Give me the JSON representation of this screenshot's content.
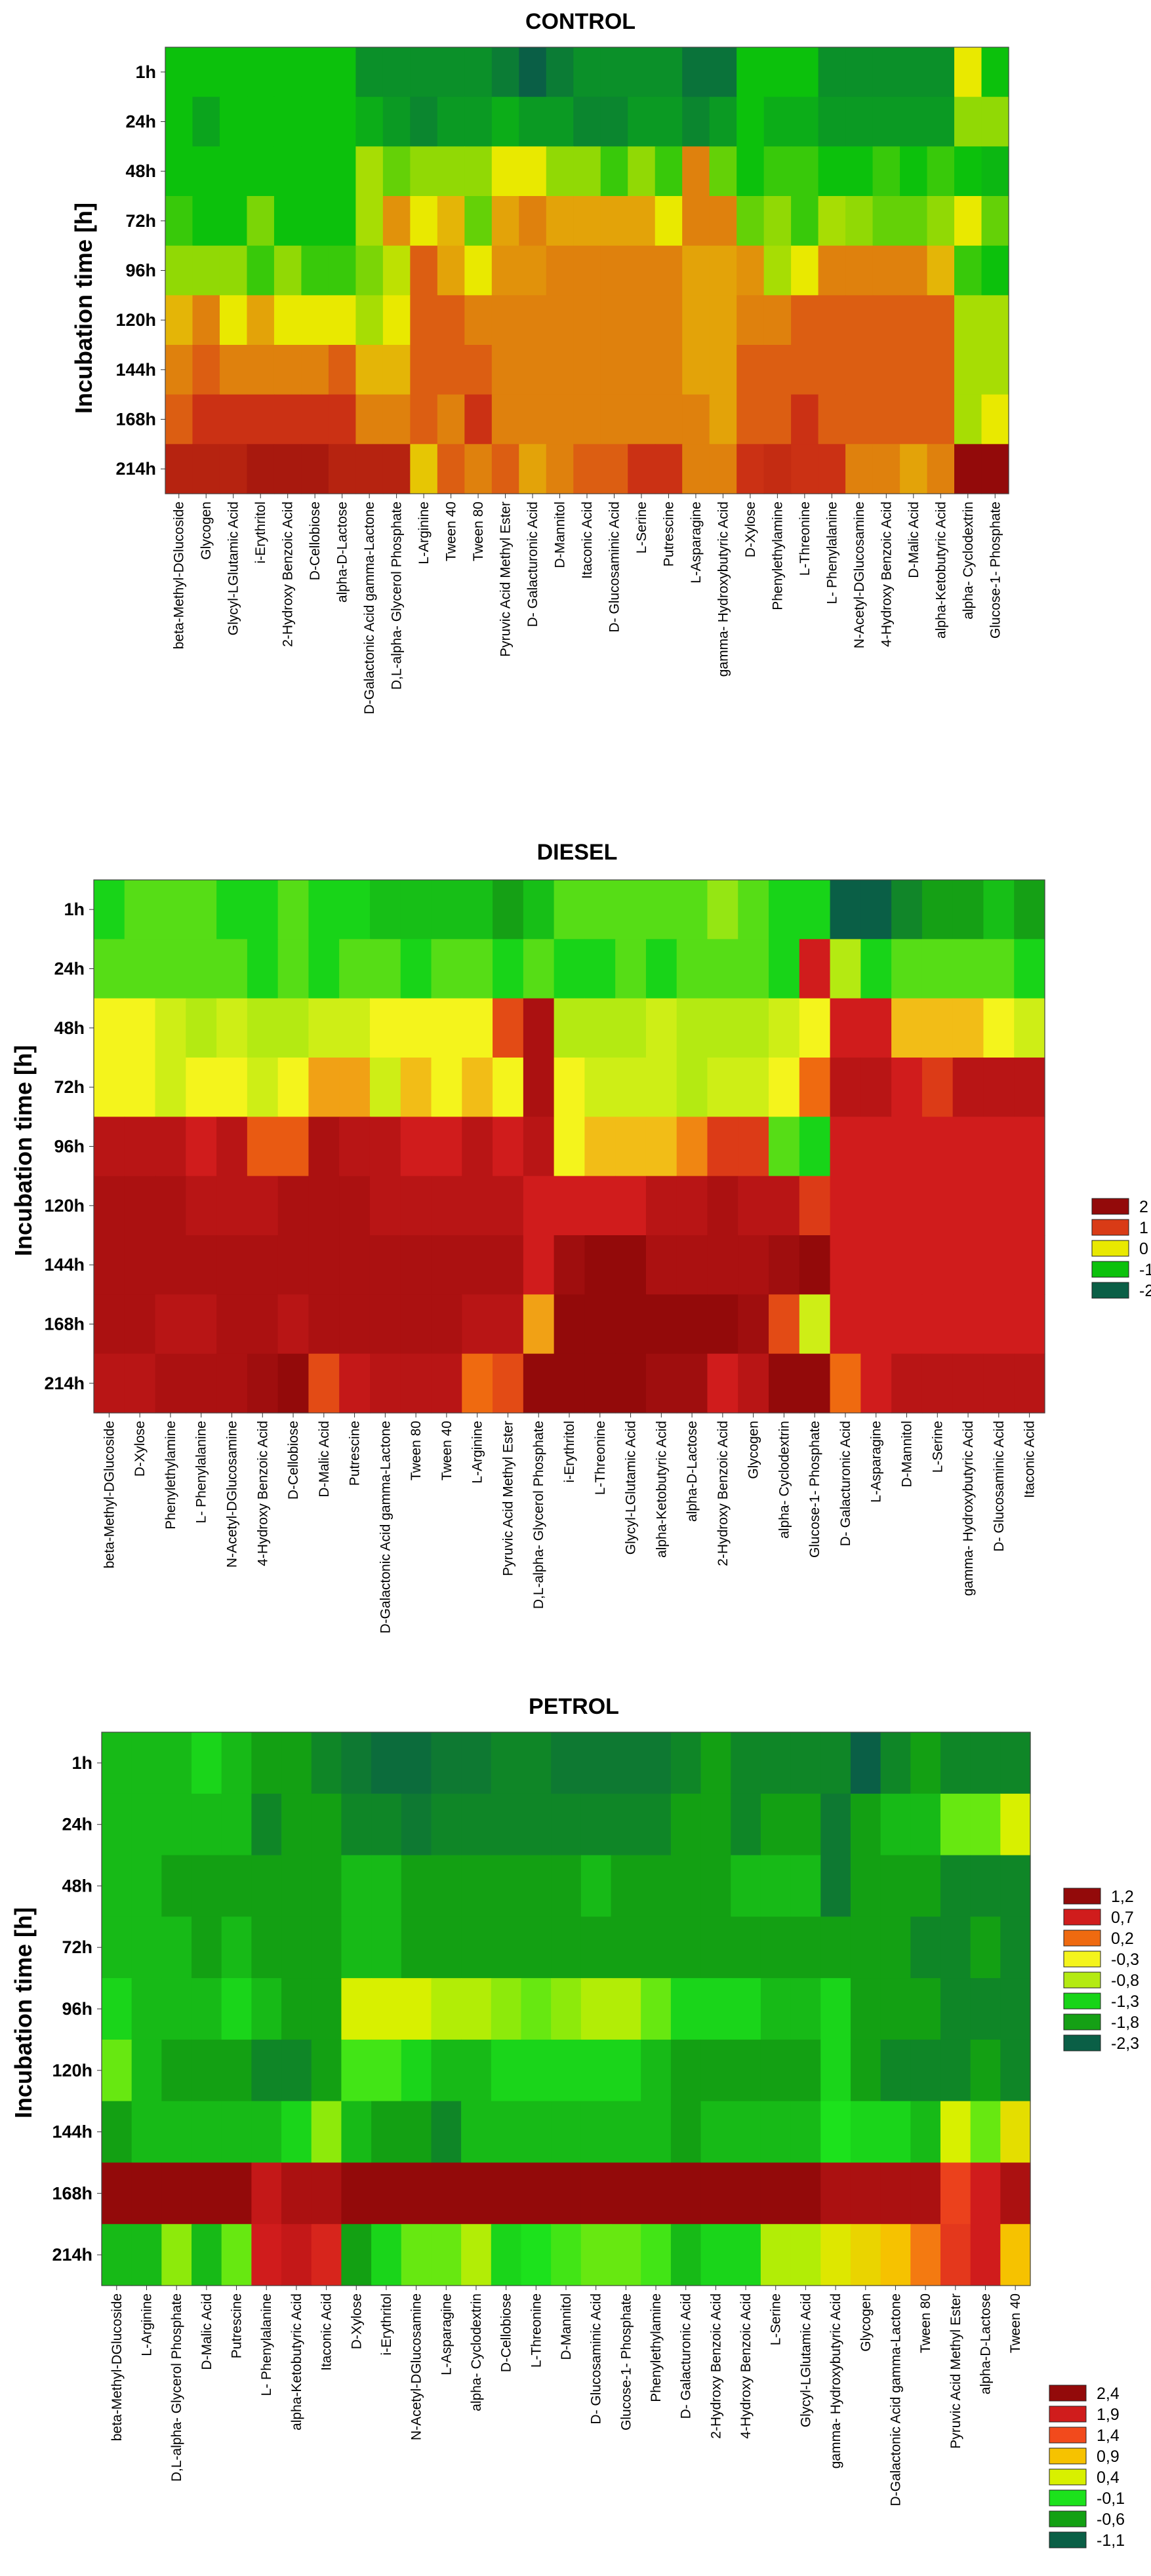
{
  "chart_data": [
    {
      "type": "heatmap",
      "title": "CONTROL",
      "ylabel": "Incubation time [h]",
      "rows": [
        "1h",
        "24h",
        "48h",
        "72h",
        "96h",
        "120h",
        "144h",
        "168h",
        "214h"
      ],
      "columns": [
        "beta-Methyl-DGlucoside",
        "Glycogen",
        "Glycyl-LGlutamic Acid",
        "i-Erythritol",
        "2-Hydroxy Benzoic Acid",
        "D-Cellobiose",
        "alpha-D-Lactose",
        "D-Galactonic Acid gamma-Lactone",
        "D,L-alpha- Glycerol Phosphate",
        "L-Arginine",
        "Tween 40",
        "Tween 80",
        "Pyruvic Acid Methyl Ester",
        "D- Galacturonic Acid",
        "D-Mannitol",
        "Itaconic Acid",
        "D- Glucosaminic Acid",
        "L-Serine",
        "Putrescine",
        "L-Asparagine",
        "gamma- Hydroxybutyric Acid",
        "D-Xylose",
        "Phenylethylamine",
        "L-Threonine",
        "L- Phenylalanine",
        "N-Acetyl-DGlucosamine",
        "4-Hydroxy Benzoic Acid",
        "D-Malic Acid",
        "alpha-Ketobutyric Acid",
        "alpha- Cyclodextrin",
        "Glucose-1- Phosphate"
      ],
      "values": [
        [
          -1,
          -1,
          -1,
          -1,
          -1,
          -1,
          -1,
          -1.5,
          -1.5,
          -1.5,
          -1.5,
          -1.5,
          -1.7,
          -2,
          -1.7,
          -1.5,
          -1.5,
          -1.5,
          -1.5,
          -1.8,
          -1.8,
          -1,
          -1,
          -1,
          -1.5,
          -1.5,
          -1.5,
          -1.5,
          -1.5,
          0,
          -1
        ],
        [
          -1,
          -1.3,
          -1,
          -1,
          -1,
          -1,
          -1,
          -1.2,
          -1.4,
          -1.6,
          -1.4,
          -1.4,
          -1.2,
          -1.4,
          -1.4,
          -1.6,
          -1.6,
          -1.4,
          -1.4,
          -1.6,
          -1.4,
          -1,
          -1.2,
          -1.2,
          -1.4,
          -1.4,
          -1.4,
          -1.4,
          -1.4,
          -0.4,
          -0.4
        ],
        [
          -1,
          -1,
          -1,
          -1,
          -1,
          -1,
          -1,
          -0.3,
          -0.6,
          -0.4,
          -0.4,
          -0.4,
          0,
          0,
          -0.4,
          -0.4,
          -0.8,
          -0.4,
          -0.8,
          0.6,
          -0.6,
          -1,
          -0.8,
          -0.8,
          -1,
          -1,
          -0.8,
          -1,
          -0.8,
          -1,
          -1.1
        ],
        [
          -0.8,
          -1,
          -1,
          -0.5,
          -1,
          -1,
          -1,
          -0.3,
          0.5,
          0,
          0.3,
          -0.6,
          0.4,
          0.6,
          0.4,
          0.4,
          0.4,
          0.4,
          0,
          0.6,
          0.6,
          -0.6,
          -0.4,
          -0.8,
          -0.3,
          -0.4,
          -0.6,
          -0.6,
          -0.4,
          0,
          -0.6
        ],
        [
          -0.4,
          -0.4,
          -0.4,
          -0.8,
          -0.4,
          -0.8,
          -0.8,
          -0.5,
          -0.2,
          0.8,
          0.4,
          0,
          0.5,
          0.5,
          0.6,
          0.6,
          0.6,
          0.6,
          0.6,
          0.4,
          0.4,
          0.5,
          -0.3,
          0,
          0.6,
          0.6,
          0.6,
          0.6,
          0.3,
          -0.8,
          -1
        ],
        [
          0.3,
          0.6,
          0,
          0.4,
          0,
          0,
          0,
          -0.3,
          0,
          0.8,
          0.8,
          0.6,
          0.6,
          0.6,
          0.6,
          0.6,
          0.6,
          0.6,
          0.6,
          0.4,
          0.4,
          0.6,
          0.6,
          0.8,
          0.8,
          0.8,
          0.8,
          0.8,
          0.8,
          -0.3,
          -0.3
        ],
        [
          0.6,
          0.8,
          0.6,
          0.6,
          0.6,
          0.6,
          0.8,
          0.3,
          0.3,
          0.8,
          0.8,
          0.8,
          0.6,
          0.6,
          0.6,
          0.6,
          0.6,
          0.6,
          0.6,
          0.4,
          0.4,
          0.8,
          0.8,
          0.8,
          0.8,
          0.8,
          0.8,
          0.8,
          0.8,
          -0.3,
          -0.3
        ],
        [
          0.8,
          1.2,
          1.2,
          1.2,
          1.2,
          1.2,
          1.2,
          0.6,
          0.6,
          0.8,
          0.6,
          1.2,
          0.6,
          0.6,
          0.6,
          0.6,
          0.6,
          0.6,
          0.6,
          0.6,
          0.4,
          0.8,
          0.8,
          1.2,
          0.8,
          0.8,
          0.8,
          0.8,
          0.8,
          -0.3,
          0
        ],
        [
          1.5,
          1.5,
          1.5,
          1.7,
          1.7,
          1.7,
          1.5,
          1.5,
          1.5,
          0.2,
          0.8,
          0.6,
          0.8,
          0.4,
          0.6,
          0.8,
          0.8,
          1.2,
          1.2,
          0.6,
          0.6,
          1.2,
          1.3,
          1.2,
          1.2,
          0.6,
          0.6,
          0.4,
          0.6,
          2,
          2
        ]
      ],
      "legend": {
        "labels": [
          "2",
          "1",
          "0",
          "-1",
          "-2"
        ],
        "colors": [
          "#930a0a",
          "#d93b16",
          "#e9e900",
          "#0cc10c",
          "#0a5f46"
        ]
      }
    },
    {
      "type": "heatmap",
      "title": "DIESEL",
      "ylabel": "Incubation time [h]",
      "rows": [
        "1h",
        "24h",
        "48h",
        "72h",
        "96h",
        "120h",
        "144h",
        "168h",
        "214h"
      ],
      "columns": [
        "beta-Methyl-DGlucoside",
        "D-Xylose",
        "Phenylethylamine",
        "L- Phenylalanine",
        "N-Acetyl-DGlucosamine",
        "4-Hydroxy Benzoic Acid",
        "D-Cellobiose",
        "D-Malic Acid",
        "Putrescine",
        "D-Galactonic Acid gamma-Lactone",
        "Tween 80",
        "Tween 40",
        "L-Arginine",
        "Pyruvic Acid Methyl Ester",
        "D,L-alpha- Glycerol Phosphate",
        "i-Erythritol",
        "L-Threonine",
        "Glycyl-LGlutamic Acid",
        "alpha-Ketobutyric Acid",
        "alpha-D-Lactose",
        "2-Hydroxy Benzoic Acid",
        "Glycogen",
        "alpha- Cyclodextrin",
        "Glucose-1- Phosphate",
        "D- Galacturonic Acid",
        "L-Asparagine",
        "D-Mannitol",
        "L-Serine",
        "gamma- Hydroxybutyric Acid",
        "D- Glucosaminic Acid",
        "Itaconic Acid"
      ],
      "values": [
        [
          -1.3,
          -1.1,
          -1.1,
          -1.1,
          -1.3,
          -1.3,
          -1.1,
          -1.3,
          -1.3,
          -1.5,
          -1.5,
          -1.5,
          -1.5,
          -1.8,
          -1.5,
          -1.1,
          -1.1,
          -1.1,
          -1.1,
          -1.1,
          -0.9,
          -1.1,
          -1.3,
          -1.3,
          -2.3,
          -2.3,
          -2,
          -1.8,
          -1.8,
          -1.5,
          -1.8
        ],
        [
          -1.1,
          -1.1,
          -1.1,
          -1.1,
          -1.1,
          -1.3,
          -1.1,
          -1.3,
          -1.1,
          -1.1,
          -1.3,
          -1.1,
          -1.1,
          -1.3,
          -1.1,
          -1.3,
          -1.3,
          -1.1,
          -1.3,
          -1.1,
          -1.1,
          -1.1,
          -1.3,
          0.7,
          -0.8,
          -1.3,
          -1.1,
          -1.1,
          -1.1,
          -1.1,
          -1.3
        ],
        [
          -0.3,
          -0.3,
          -0.6,
          -0.8,
          -0.6,
          -0.8,
          -0.8,
          -0.6,
          -0.6,
          -0.3,
          -0.3,
          -0.3,
          -0.3,
          0.4,
          1,
          -0.8,
          -0.8,
          -0.8,
          -0.6,
          -0.8,
          -0.8,
          -0.8,
          -0.6,
          -0.3,
          0.7,
          0.7,
          -0.1,
          -0.1,
          -0.1,
          -0.3,
          -0.6
        ],
        [
          -0.3,
          -0.3,
          -0.6,
          -0.3,
          -0.3,
          -0.6,
          -0.3,
          0,
          0,
          -0.6,
          -0.1,
          -0.3,
          -0.1,
          -0.3,
          1,
          -0.3,
          -0.6,
          -0.6,
          -0.6,
          -0.8,
          -0.6,
          -0.6,
          -0.3,
          0.2,
          0.9,
          0.9,
          0.7,
          0.5,
          0.9,
          0.9,
          0.9
        ],
        [
          0.9,
          0.9,
          0.9,
          0.7,
          0.9,
          0.3,
          0.3,
          1,
          0.9,
          0.9,
          0.7,
          0.7,
          0.9,
          0.7,
          0.9,
          -0.3,
          -0.1,
          -0.1,
          -0.1,
          0.1,
          0.5,
          0.5,
          -1.1,
          -1.3,
          0.7,
          0.7,
          0.7,
          0.7,
          0.7,
          0.7,
          0.7
        ],
        [
          1,
          1,
          1,
          0.9,
          0.9,
          0.9,
          1,
          1,
          1,
          0.9,
          0.9,
          0.9,
          0.9,
          0.9,
          0.7,
          0.7,
          0.7,
          0.7,
          0.9,
          0.9,
          1,
          0.9,
          0.9,
          0.5,
          0.7,
          0.7,
          0.7,
          0.7,
          0.7,
          0.7,
          0.7
        ],
        [
          1,
          1,
          1,
          1,
          1,
          1,
          1,
          1,
          1,
          1,
          1,
          1,
          1,
          1,
          0.7,
          1.1,
          1.2,
          1.2,
          1,
          1,
          1,
          1,
          1.1,
          1.2,
          0.7,
          0.7,
          0.7,
          0.7,
          0.7,
          0.7,
          0.7
        ],
        [
          1,
          1,
          0.9,
          0.9,
          1,
          1,
          0.9,
          1,
          1,
          1,
          1,
          1,
          0.9,
          0.9,
          0,
          1.2,
          1.2,
          1.2,
          1.2,
          1.2,
          1.2,
          1.1,
          0.4,
          -0.6,
          0.7,
          0.7,
          0.7,
          0.7,
          0.7,
          0.7,
          0.7
        ],
        [
          0.9,
          0.9,
          1,
          1,
          1,
          1.1,
          1.2,
          0.4,
          0.8,
          0.9,
          0.9,
          0.9,
          0.2,
          0.4,
          1.2,
          1.2,
          1.2,
          1.2,
          1.1,
          1.1,
          0.7,
          0.9,
          1.2,
          1.2,
          0.2,
          0.7,
          0.9,
          0.9,
          0.9,
          0.9,
          0.9
        ]
      ],
      "legend": {
        "labels": [
          "1,2",
          "0,7",
          "0,2",
          "-0,3",
          "-0,8",
          "-1,3",
          "-1,8",
          "-2,3"
        ],
        "colors": [
          "#930a0a",
          "#d01c1c",
          "#ef6a10",
          "#f4f41c",
          "#b4ea12",
          "#18d418",
          "#15a015",
          "#0a5f46"
        ]
      }
    },
    {
      "type": "heatmap",
      "title": "PETROL",
      "ylabel": "Incubation time [h]",
      "rows": [
        "1h",
        "24h",
        "48h",
        "72h",
        "96h",
        "120h",
        "144h",
        "168h",
        "214h"
      ],
      "columns": [
        "beta-Methyl-DGlucoside",
        "L-Arginine",
        "D,L-alpha- Glycerol Phosphate",
        "D-Malic Acid",
        "Putrescine",
        "L- Phenylalanine",
        "alpha-Ketobutyric Acid",
        "Itaconic Acid",
        "D-Xylose",
        "i-Erythritol",
        "N-Acetyl-DGlucosamine",
        "L-Asparagine",
        "alpha- Cyclodextrin",
        "D-Cellobiose",
        "L-Threonine",
        "D-Mannitol",
        "D- Glucosaminic Acid",
        "Glucose-1- Phosphate",
        "Phenylethylamine",
        "D- Galacturonic Acid",
        "2-Hydroxy Benzoic Acid",
        "4-Hydroxy Benzoic Acid",
        "L-Serine",
        "Glycyl-LGlutamic Acid",
        "gamma- Hydroxybutyric Acid",
        "Glycogen",
        "D-Galactonic Acid gamma-Lactone",
        "Tween 80",
        "Pyruvic Acid Methyl Ester",
        "alpha-D-Lactose",
        "Tween 40"
      ],
      "values": [
        [
          -0.4,
          -0.4,
          -0.4,
          -0.2,
          -0.4,
          -0.6,
          -0.6,
          -0.8,
          -0.9,
          -1,
          -1,
          -0.9,
          -0.9,
          -0.8,
          -0.8,
          -0.9,
          -0.9,
          -0.9,
          -0.9,
          -0.8,
          -0.6,
          -0.8,
          -0.8,
          -0.8,
          -0.8,
          -1.1,
          -0.8,
          -0.6,
          -0.8,
          -0.8,
          -0.8
        ],
        [
          -0.4,
          -0.4,
          -0.4,
          -0.4,
          -0.4,
          -0.8,
          -0.6,
          -0.6,
          -0.8,
          -0.8,
          -0.9,
          -0.8,
          -0.8,
          -0.8,
          -0.8,
          -0.8,
          -0.8,
          -0.8,
          -0.8,
          -0.6,
          -0.6,
          -0.8,
          -0.6,
          -0.6,
          -0.9,
          -0.6,
          -0.4,
          -0.4,
          0.1,
          0.1,
          0.4
        ],
        [
          -0.4,
          -0.4,
          -0.6,
          -0.6,
          -0.6,
          -0.6,
          -0.6,
          -0.6,
          -0.4,
          -0.4,
          -0.6,
          -0.6,
          -0.6,
          -0.6,
          -0.6,
          -0.6,
          -0.4,
          -0.6,
          -0.6,
          -0.6,
          -0.6,
          -0.4,
          -0.4,
          -0.4,
          -0.9,
          -0.6,
          -0.6,
          -0.6,
          -0.8,
          -0.8,
          -0.8
        ],
        [
          -0.4,
          -0.4,
          -0.4,
          -0.6,
          -0.4,
          -0.6,
          -0.6,
          -0.6,
          -0.4,
          -0.4,
          -0.6,
          -0.6,
          -0.6,
          -0.6,
          -0.6,
          -0.6,
          -0.6,
          -0.6,
          -0.6,
          -0.6,
          -0.6,
          -0.6,
          -0.6,
          -0.6,
          -0.6,
          -0.6,
          -0.6,
          -0.8,
          -0.8,
          -0.6,
          -0.8
        ],
        [
          -0.2,
          -0.4,
          -0.4,
          -0.4,
          -0.2,
          -0.4,
          -0.6,
          -0.6,
          0.4,
          0.4,
          0.4,
          0.3,
          0.3,
          0.2,
          0.1,
          0.2,
          0.3,
          0.3,
          0.1,
          -0.2,
          -0.2,
          -0.2,
          -0.4,
          -0.4,
          -0.2,
          -0.6,
          -0.6,
          -0.6,
          -0.8,
          -0.8,
          -0.8
        ],
        [
          0.1,
          -0.4,
          -0.6,
          -0.6,
          -0.6,
          -0.8,
          -0.8,
          -0.6,
          0,
          0,
          -0.2,
          -0.4,
          -0.4,
          -0.2,
          -0.2,
          -0.2,
          -0.2,
          -0.2,
          -0.4,
          -0.6,
          -0.6,
          -0.6,
          -0.6,
          -0.6,
          -0.2,
          -0.6,
          -0.8,
          -0.8,
          -0.8,
          -0.6,
          -0.8
        ],
        [
          -0.6,
          -0.4,
          -0.4,
          -0.4,
          -0.4,
          -0.4,
          -0.2,
          0.2,
          -0.4,
          -0.6,
          -0.6,
          -0.8,
          -0.4,
          -0.4,
          -0.4,
          -0.4,
          -0.4,
          -0.4,
          -0.4,
          -0.6,
          -0.4,
          -0.4,
          -0.4,
          -0.4,
          -0.1,
          -0.2,
          -0.2,
          -0.4,
          0.4,
          0.1,
          0.6
        ],
        [
          2.4,
          2.4,
          2.4,
          2.4,
          2.4,
          2,
          2.2,
          2.2,
          2.4,
          2.4,
          2.4,
          2.4,
          2.4,
          2.4,
          2.4,
          2.4,
          2.4,
          2.4,
          2.4,
          2.4,
          2.4,
          2.4,
          2.4,
          2.4,
          2.2,
          2.2,
          2.2,
          2.2,
          1.5,
          1.9,
          2.2
        ],
        [
          -0.4,
          -0.4,
          0.2,
          -0.4,
          0.1,
          1.9,
          2,
          1.8,
          -0.6,
          -0.2,
          0.1,
          0.1,
          0.3,
          -0.2,
          -0.1,
          0,
          0.1,
          0.1,
          0,
          -0.4,
          -0.2,
          -0.2,
          0.3,
          0.3,
          0.5,
          0.7,
          0.9,
          1.2,
          1.6,
          1.9,
          0.9
        ]
      ],
      "legend": {
        "labels": [
          "2,4",
          "1,9",
          "1,4",
          "0,9",
          "0,4",
          "-0,1",
          "-0,6",
          "-1,1"
        ],
        "colors": [
          "#930a0a",
          "#d01c1c",
          "#f24a1c",
          "#f6c200",
          "#d8f000",
          "#1ce21c",
          "#13a013",
          "#0a5f46"
        ]
      }
    }
  ]
}
